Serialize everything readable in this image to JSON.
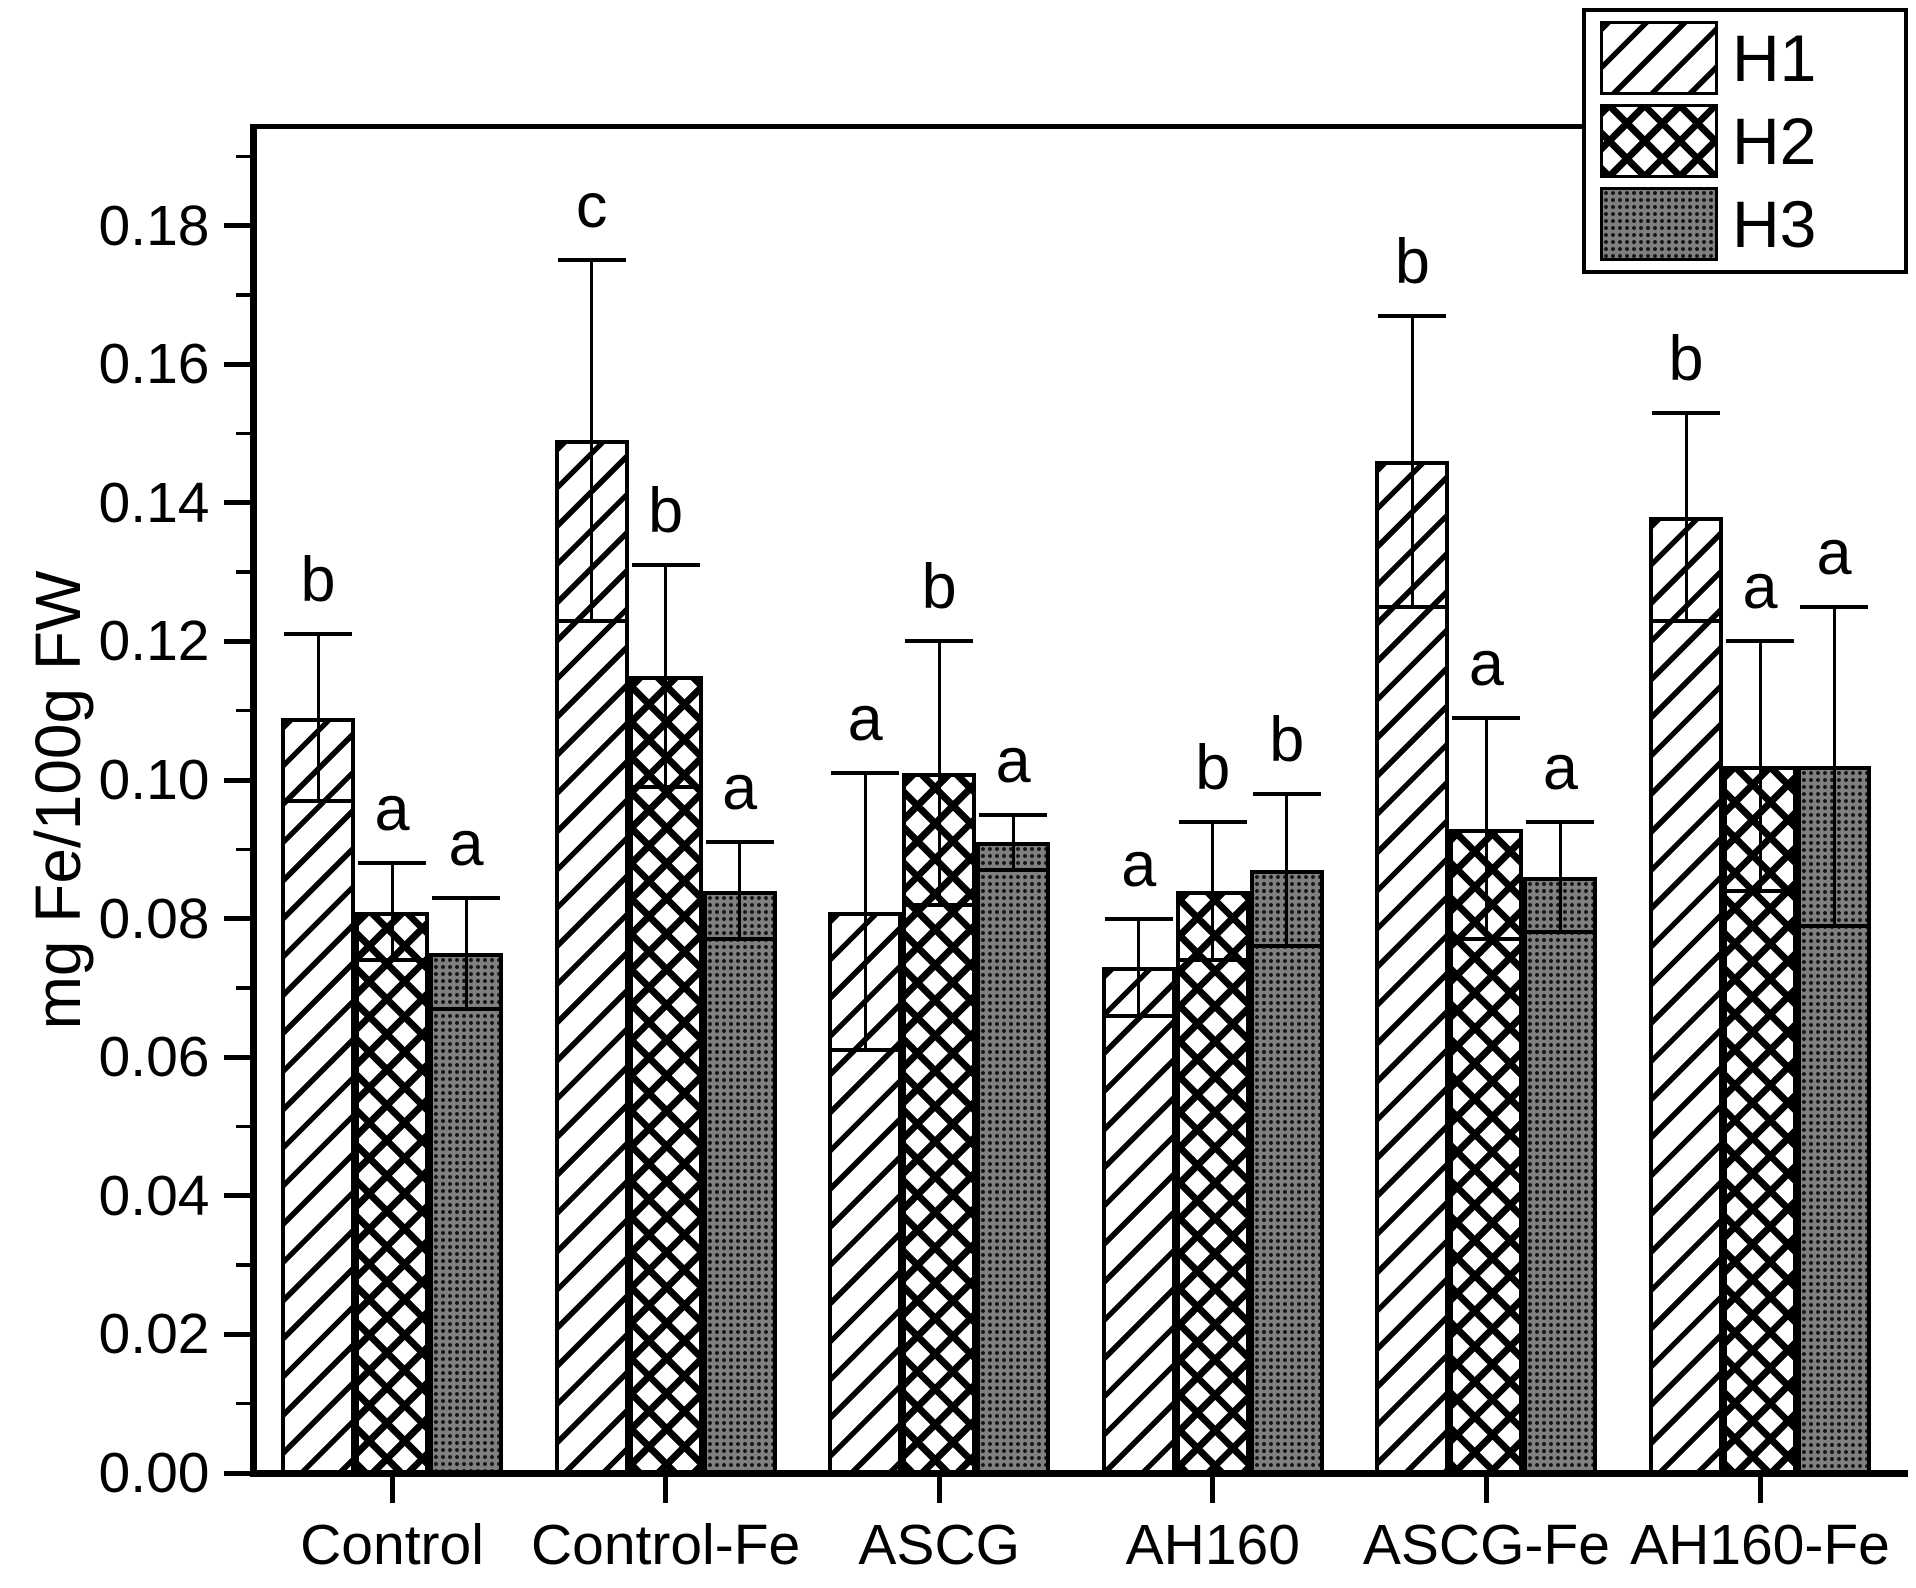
{
  "y_axis": {
    "label": "mg Fe/100g FW",
    "tick_labels": [
      "0.00",
      "0.02",
      "0.04",
      "0.06",
      "0.08",
      "0.10",
      "0.12",
      "0.14",
      "0.16",
      "0.18"
    ]
  },
  "x_axis": {
    "tick_labels": [
      "Control",
      "Control-Fe",
      "ASCG",
      "AH160",
      "ASCG-Fe",
      "AH160-Fe"
    ]
  },
  "legend": {
    "entries": [
      {
        "label": "H1",
        "pattern": "diagonal-hatch"
      },
      {
        "label": "H2",
        "pattern": "crosshatch"
      },
      {
        "label": "H3",
        "pattern": "gray-dotted"
      }
    ]
  },
  "colors": {
    "foreground": "#000000",
    "background": "#ffffff",
    "h3_fill": "#7f7f7f"
  },
  "chart_data": {
    "type": "bar",
    "title": "",
    "xlabel": "",
    "ylabel": "mg Fe/100g FW",
    "ylim": [
      0,
      0.194
    ],
    "ytick_step": 0.02,
    "minor_tick_step": 0.01,
    "grid": false,
    "legend_position": "top-right",
    "error_bars": true,
    "categories": [
      "Control",
      "Control-Fe",
      "ASCG",
      "AH160",
      "ASCG-Fe",
      "AH160-Fe"
    ],
    "series": [
      {
        "name": "H1",
        "pattern": "diagonal-hatch",
        "values": [
          0.109,
          0.149,
          0.081,
          0.073,
          0.146,
          0.138
        ],
        "errors": [
          0.012,
          0.026,
          0.02,
          0.007,
          0.021,
          0.015
        ],
        "letters": [
          "b",
          "c",
          "a",
          "a",
          "b",
          "b"
        ]
      },
      {
        "name": "H2",
        "pattern": "crosshatch",
        "values": [
          0.081,
          0.115,
          0.101,
          0.084,
          0.093,
          0.102
        ],
        "errors": [
          0.007,
          0.016,
          0.019,
          0.01,
          0.016,
          0.018
        ],
        "letters": [
          "a",
          "b",
          "b",
          "b",
          "a",
          "a"
        ]
      },
      {
        "name": "H3",
        "pattern": "gray-dotted",
        "values": [
          0.075,
          0.084,
          0.091,
          0.087,
          0.086,
          0.102
        ],
        "errors": [
          0.008,
          0.007,
          0.004,
          0.011,
          0.008,
          0.023
        ],
        "letters": [
          "a",
          "a",
          "a",
          "b",
          "a",
          "a"
        ]
      }
    ]
  }
}
